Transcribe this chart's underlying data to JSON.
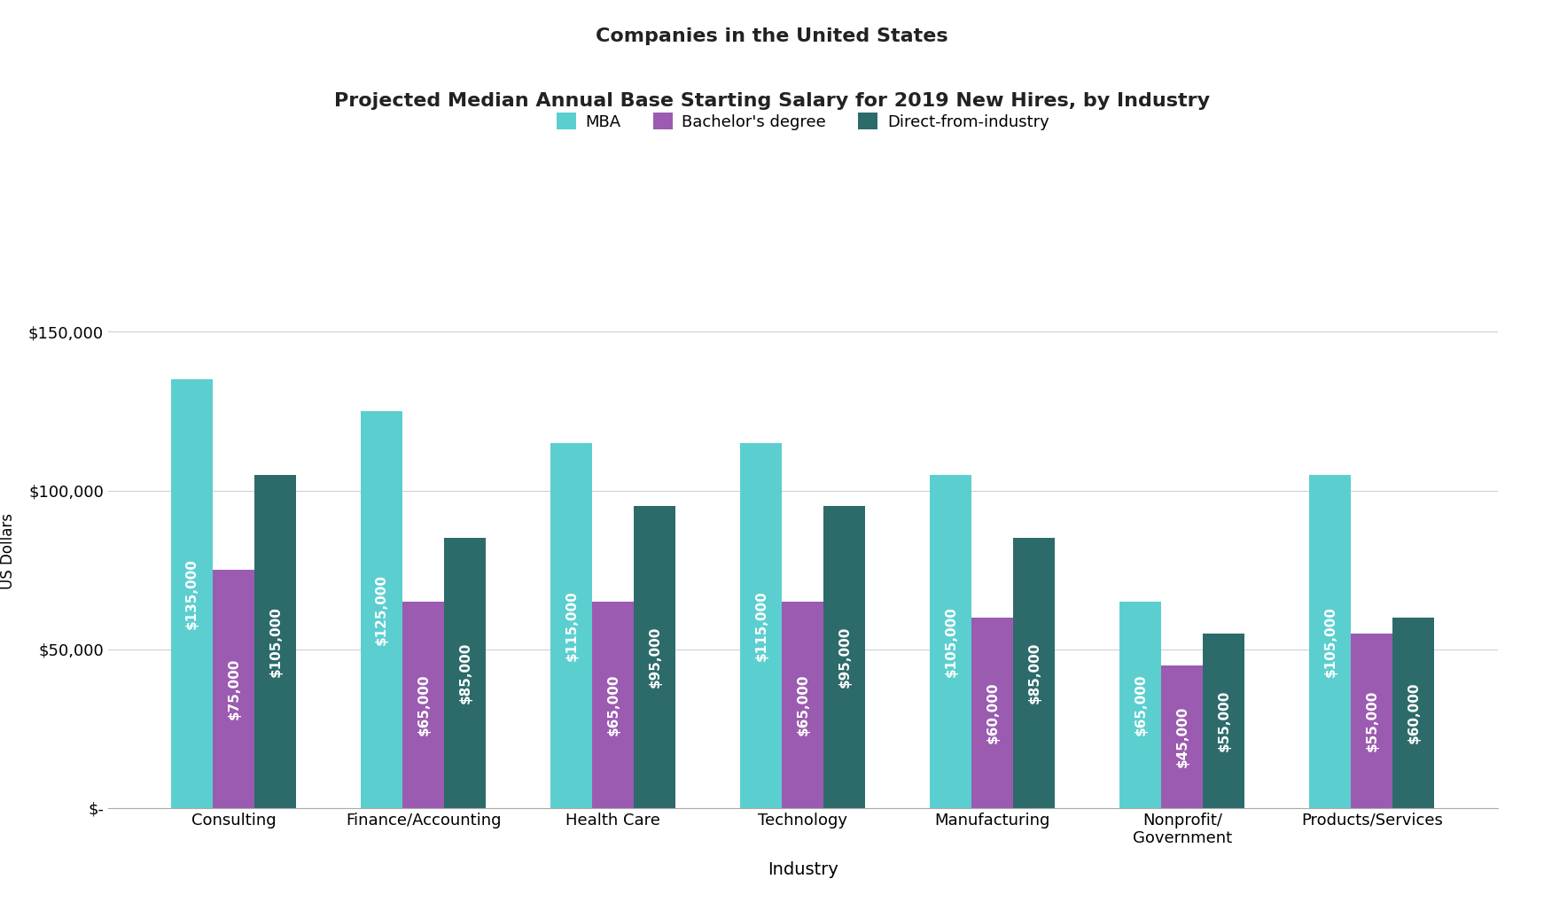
{
  "title1": "Companies in the United States",
  "title2": "Projected Median Annual Base Starting Salary for 2019 New Hires, by Industry",
  "xlabel": "Industry",
  "ylabel": "US Dollars",
  "categories": [
    "Consulting",
    "Finance/Accounting",
    "Health Care",
    "Technology",
    "Manufacturing",
    "Nonprofit/\nGovernment",
    "Products/Services"
  ],
  "mba": [
    135000,
    125000,
    115000,
    115000,
    105000,
    65000,
    105000
  ],
  "bachelors": [
    75000,
    65000,
    65000,
    65000,
    60000,
    45000,
    55000
  ],
  "direct": [
    105000,
    85000,
    95000,
    95000,
    85000,
    55000,
    60000
  ],
  "mba_color": "#5bcfcf",
  "bachelors_color": "#9b5bb0",
  "direct_color": "#2d6b6b",
  "bar_width": 0.22,
  "ylim": [
    0,
    162000
  ],
  "yticks": [
    0,
    50000,
    100000,
    150000
  ],
  "ytick_labels": [
    "$-",
    "$50,000",
    "$100,000",
    "$150,000"
  ],
  "legend_labels": [
    "MBA",
    "Bachelor's degree",
    "Direct-from-industry"
  ],
  "background_color": "#ffffff",
  "grid_color": "#d0d0d0",
  "tick_fontsize": 13,
  "xlabel_fontsize": 14,
  "ylabel_fontsize": 12,
  "title1_fontsize": 16,
  "title2_fontsize": 16,
  "bar_label_fontsize": 11,
  "legend_fontsize": 13
}
